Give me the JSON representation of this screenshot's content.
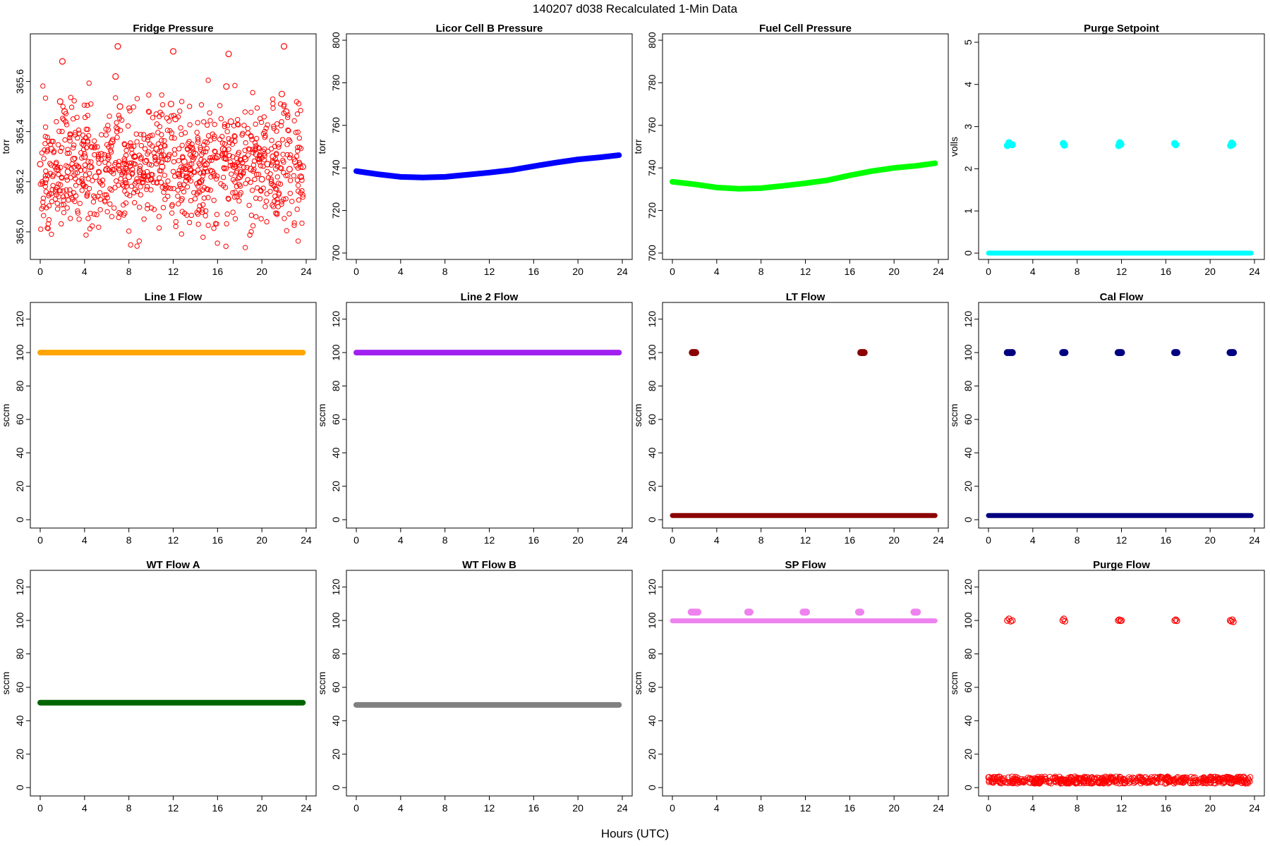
{
  "figure": {
    "title": "140207   d038   Recalculated 1-Min Data",
    "xlabel": "Hours (UTC)"
  },
  "chart_data": [
    {
      "type": "scatter",
      "title": "Fridge Pressure",
      "ylabel": "torr",
      "color": "#ff0000",
      "marker": "open-circle",
      "xlim": [
        0,
        24
      ],
      "ylim": [
        364.89,
        365.79
      ],
      "xticks": [
        0,
        4,
        8,
        12,
        16,
        20,
        24
      ],
      "yticks": [
        365.0,
        365.2,
        365.4,
        365.6
      ],
      "ytick_labels": [
        "365.0",
        "365.2",
        "365.4",
        "365.6"
      ],
      "x": [
        0,
        0.5,
        1,
        1.5,
        1.8,
        2,
        2.2,
        2.5,
        3,
        3.5,
        4,
        4.5,
        5,
        5.5,
        6,
        6.5,
        6.8,
        7,
        7.2,
        7.5,
        8,
        8.5,
        9,
        9.5,
        10,
        10.5,
        11,
        11.5,
        11.8,
        12,
        12.2,
        12.5,
        13,
        13.5,
        14,
        14.5,
        15,
        15.5,
        16,
        16.5,
        16.8,
        17,
        17.2,
        17.5,
        18,
        18.5,
        19,
        19.5,
        20,
        20.5,
        21,
        21.5,
        21.8,
        22,
        22.2,
        22.5,
        23,
        23.5,
        23.7
      ],
      "y": [
        365.27,
        365.21,
        365.33,
        365.25,
        365.52,
        365.68,
        365.48,
        365.24,
        365.29,
        365.2,
        365.3,
        365.26,
        365.22,
        365.31,
        365.25,
        365.36,
        365.62,
        365.74,
        365.5,
        365.27,
        365.22,
        365.3,
        365.24,
        365.28,
        365.21,
        365.33,
        365.26,
        365.29,
        365.51,
        365.72,
        365.45,
        365.23,
        365.28,
        365.25,
        365.31,
        365.2,
        365.27,
        365.24,
        365.3,
        365.33,
        365.58,
        365.71,
        365.44,
        365.26,
        365.22,
        365.29,
        365.25,
        365.31,
        365.21,
        365.27,
        365.3,
        365.35,
        365.55,
        365.74,
        365.48,
        365.25,
        365.28,
        365.22,
        365.26
      ],
      "band": [
        365.05,
        365.45
      ]
    },
    {
      "type": "line",
      "title": "Licor Cell B Pressure",
      "ylabel": "torr",
      "color": "#0000ff",
      "xlim": [
        0,
        24
      ],
      "ylim": [
        697,
        803
      ],
      "xticks": [
        0,
        4,
        8,
        12,
        16,
        20,
        24
      ],
      "yticks": [
        700,
        720,
        740,
        760,
        780,
        800
      ],
      "x": [
        0,
        2,
        4,
        6,
        8,
        10,
        12,
        14,
        16,
        18,
        20,
        22,
        23.7
      ],
      "y": [
        738.5,
        737.0,
        735.8,
        735.5,
        735.8,
        736.8,
        737.8,
        739.0,
        740.8,
        742.5,
        744.0,
        745.0,
        746.0
      ]
    },
    {
      "type": "line",
      "title": "Fuel Cell Pressure",
      "ylabel": "torr",
      "color": "#00ff00",
      "xlim": [
        0,
        24
      ],
      "ylim": [
        697,
        803
      ],
      "xticks": [
        0,
        4,
        8,
        12,
        16,
        20,
        24
      ],
      "yticks": [
        700,
        720,
        740,
        760,
        780,
        800
      ],
      "x": [
        0,
        2,
        4,
        6,
        8,
        10,
        12,
        14,
        16,
        18,
        20,
        22,
        23.7
      ],
      "y": [
        733.5,
        732.3,
        730.8,
        730.2,
        730.5,
        731.6,
        732.8,
        734.2,
        736.5,
        738.5,
        740.0,
        741.0,
        742.2
      ]
    },
    {
      "type": "scatter",
      "title": "Purge Setpoint",
      "ylabel": "volls",
      "color": "#00ffff",
      "xlim": [
        0,
        24
      ],
      "ylim": [
        -0.15,
        5.2
      ],
      "xticks": [
        0,
        4,
        8,
        12,
        16,
        20,
        24
      ],
      "yticks": [
        0,
        1,
        2,
        3,
        4,
        5
      ],
      "baseline": {
        "x": [
          0,
          23.7
        ],
        "y": 0
      },
      "x": [
        1.7,
        1.85,
        2.0,
        2.15,
        6.75,
        6.85,
        11.75,
        11.85,
        11.95,
        16.8,
        16.9,
        21.85,
        21.95,
        22.05
      ],
      "y": [
        2.55,
        2.62,
        2.58,
        2.57,
        2.6,
        2.56,
        2.55,
        2.62,
        2.58,
        2.6,
        2.57,
        2.55,
        2.61,
        2.58
      ]
    },
    {
      "type": "line",
      "title": "Line 1 Flow",
      "ylabel": "sccm",
      "color": "#ffa500",
      "xlim": [
        0,
        24
      ],
      "ylim": [
        -5,
        130
      ],
      "xticks": [
        0,
        4,
        8,
        12,
        16,
        20,
        24
      ],
      "yticks": [
        0,
        20,
        40,
        60,
        80,
        100,
        120
      ],
      "x": [
        0,
        23.7
      ],
      "y": [
        100,
        100
      ]
    },
    {
      "type": "line",
      "title": "Line 2 Flow",
      "ylabel": "sccm",
      "color": "#a020f0",
      "xlim": [
        0,
        24
      ],
      "ylim": [
        -5,
        130
      ],
      "xticks": [
        0,
        4,
        8,
        12,
        16,
        20,
        24
      ],
      "yticks": [
        0,
        20,
        40,
        60,
        80,
        100,
        120
      ],
      "x": [
        0,
        23.7
      ],
      "y": [
        100,
        100
      ]
    },
    {
      "type": "scatter",
      "title": "LT Flow",
      "ylabel": "sccm",
      "color": "#8b0000",
      "xlim": [
        0,
        24
      ],
      "ylim": [
        -5,
        130
      ],
      "xticks": [
        0,
        4,
        8,
        12,
        16,
        20,
        24
      ],
      "yticks": [
        0,
        20,
        40,
        60,
        80,
        100,
        120
      ],
      "baseline": {
        "x": [
          0,
          23.7
        ],
        "y": 2.5
      },
      "x": [
        1.8,
        1.9,
        2.0,
        2.1,
        17.0,
        17.1,
        17.2,
        17.3
      ],
      "y": [
        100,
        100,
        100,
        100,
        100,
        100,
        100,
        100
      ]
    },
    {
      "type": "scatter",
      "title": "Cal Flow",
      "ylabel": "sccm",
      "color": "#000080",
      "xlim": [
        0,
        24
      ],
      "ylim": [
        -5,
        130
      ],
      "xticks": [
        0,
        4,
        8,
        12,
        16,
        20,
        24
      ],
      "yticks": [
        0,
        20,
        40,
        60,
        80,
        100,
        120
      ],
      "baseline": {
        "x": [
          0,
          23.7
        ],
        "y": 2.5
      },
      "x": [
        1.7,
        1.85,
        2.0,
        2.15,
        6.7,
        6.8,
        6.9,
        11.7,
        11.8,
        11.9,
        12.0,
        16.8,
        16.9,
        17.0,
        21.8,
        21.9,
        22.0,
        22.1
      ],
      "y": [
        100,
        100,
        100,
        100,
        100,
        100,
        100,
        100,
        100,
        100,
        100,
        100,
        100,
        100,
        100,
        100,
        100,
        100
      ]
    },
    {
      "type": "line",
      "title": "WT Flow A",
      "ylabel": "sccm",
      "color": "#006400",
      "xlim": [
        0,
        24
      ],
      "ylim": [
        -5,
        130
      ],
      "xticks": [
        0,
        4,
        8,
        12,
        16,
        20,
        24
      ],
      "yticks": [
        0,
        20,
        40,
        60,
        80,
        100,
        120
      ],
      "x": [
        0,
        23.7
      ],
      "y": [
        50.8,
        50.8
      ]
    },
    {
      "type": "line",
      "title": "WT Flow B",
      "ylabel": "sccm",
      "color": "#808080",
      "xlim": [
        0,
        24
      ],
      "ylim": [
        -5,
        130
      ],
      "xticks": [
        0,
        4,
        8,
        12,
        16,
        20,
        24
      ],
      "yticks": [
        0,
        20,
        40,
        60,
        80,
        100,
        120
      ],
      "x": [
        0,
        23.7
      ],
      "y": [
        49.5,
        49.5
      ]
    },
    {
      "type": "scatter",
      "title": "SP Flow",
      "ylabel": "sccm",
      "color": "#ee82ee",
      "xlim": [
        0,
        24
      ],
      "ylim": [
        -5,
        130
      ],
      "xticks": [
        0,
        4,
        8,
        12,
        16,
        20,
        24
      ],
      "yticks": [
        0,
        20,
        40,
        60,
        80,
        100,
        120
      ],
      "baseline": {
        "x": [
          0,
          23.7
        ],
        "y": 99.8
      },
      "x": [
        1.7,
        1.85,
        2.0,
        2.15,
        2.3,
        6.8,
        6.9,
        7.0,
        11.8,
        11.9,
        12.0,
        12.1,
        16.8,
        16.9,
        17.0,
        21.8,
        21.9,
        22.0,
        22.1
      ],
      "y": [
        105,
        105,
        105,
        105,
        105,
        105,
        105,
        105,
        105,
        105,
        105,
        105,
        105,
        105,
        105,
        105,
        105,
        105,
        105
      ]
    },
    {
      "type": "scatter",
      "title": "Purge Flow",
      "ylabel": "sccm",
      "color": "#ff0000",
      "marker": "open-circle",
      "xlim": [
        0,
        24
      ],
      "ylim": [
        -5,
        130
      ],
      "xticks": [
        0,
        4,
        8,
        12,
        16,
        20,
        24
      ],
      "yticks": [
        0,
        20,
        40,
        60,
        80,
        100,
        120
      ],
      "baseline": {
        "x": [
          0,
          23.7
        ],
        "y": 4.5
      },
      "x": [
        1.7,
        1.85,
        2.0,
        2.15,
        6.7,
        6.8,
        6.9,
        11.7,
        11.8,
        11.9,
        12.0,
        16.8,
        16.9,
        17.0,
        21.8,
        21.9,
        22.0,
        22.1
      ],
      "y": [
        100,
        101,
        99.5,
        100,
        100,
        101,
        99.5,
        100,
        100.5,
        99.8,
        100,
        100,
        100.5,
        99.8,
        100,
        99.5,
        100.5,
        99.2
      ]
    }
  ]
}
